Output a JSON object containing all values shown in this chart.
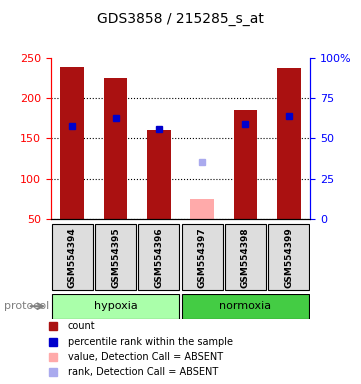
{
  "title": "GDS3858 / 215285_s_at",
  "samples": [
    "GSM554394",
    "GSM554395",
    "GSM554396",
    "GSM554397",
    "GSM554398",
    "GSM554399"
  ],
  "groups": [
    "hypoxia",
    "hypoxia",
    "hypoxia",
    "normoxia",
    "normoxia",
    "normoxia"
  ],
  "bar_heights": [
    238,
    225,
    160,
    0,
    185,
    237
  ],
  "absent_bar_heights": [
    0,
    0,
    0,
    75,
    0,
    0
  ],
  "percentile_ranks": [
    165,
    175,
    162,
    0,
    168,
    178
  ],
  "absent_rank": [
    0,
    0,
    0,
    120,
    0,
    0
  ],
  "ylim_left": [
    50,
    250
  ],
  "ylim_right": [
    0,
    100
  ],
  "yticks_left": [
    50,
    100,
    150,
    200,
    250
  ],
  "yticks_right": [
    0,
    25,
    50,
    75,
    100
  ],
  "ytick_labels_right": [
    "0",
    "25",
    "50",
    "75",
    "100%"
  ],
  "bar_color": "#aa1111",
  "absent_bar_color": "#ffaaaa",
  "percentile_color": "#0000cc",
  "absent_rank_color": "#aaaaee",
  "hypoxia_color": "#aaffaa",
  "normoxia_color": "#44cc44",
  "sample_box_color": "#dddddd",
  "grid_color": "#000000",
  "protocol_label": "protocol",
  "legend_items": [
    {
      "label": "count",
      "color": "#aa1111",
      "marker": "s"
    },
    {
      "label": "percentile rank within the sample",
      "color": "#0000cc",
      "marker": "s"
    },
    {
      "label": "value, Detection Call = ABSENT",
      "color": "#ffaaaa",
      "marker": "s"
    },
    {
      "label": "rank, Detection Call = ABSENT",
      "color": "#aaaaee",
      "marker": "s"
    }
  ]
}
